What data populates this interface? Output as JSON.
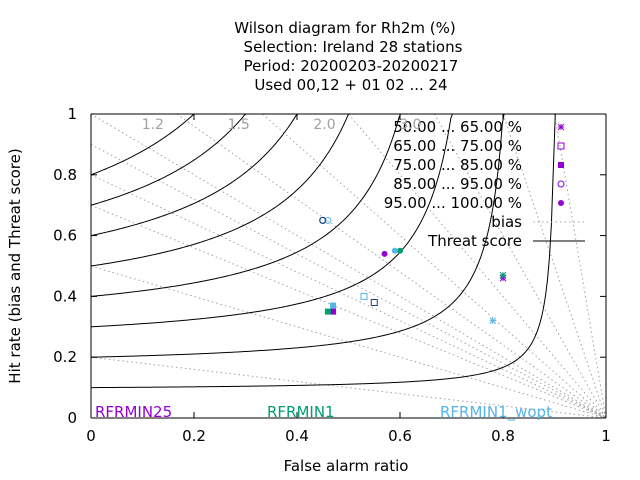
{
  "chart_data": {
    "type": "scatter",
    "title_lines": [
      "Wilson diagram  for Rh2m (%)",
      "Selection: Ireland      28 stations",
      "Period: 20200203-20200217",
      "Used  00,12  + 01 02 ... 24"
    ],
    "xlabel": "False alarm ratio",
    "ylabel": "Hit rate (bias and Threat score)",
    "xlim": [
      0,
      1
    ],
    "ylim": [
      0,
      1
    ],
    "xticks": [
      "0",
      "0.2",
      "0.4",
      "0.6",
      "0.8",
      "1"
    ],
    "yticks": [
      "0",
      "0.2",
      "0.4",
      "0.6",
      "0.8",
      "1"
    ],
    "bias_labels": [
      "1.2",
      "1.5",
      "2.0",
      "3.0"
    ],
    "bias_values": [
      1.2,
      1.5,
      2.0,
      3.0
    ],
    "threat_score_values": [
      0.1,
      0.2,
      0.3,
      0.4,
      0.5,
      0.6,
      0.7,
      0.8
    ],
    "legend": [
      {
        "label": "50.00 ... 65.00 %",
        "marker": "star",
        "color": "#9400d3"
      },
      {
        "label": "65.00 ... 75.00 %",
        "marker": "open-square",
        "color": "#9400d3"
      },
      {
        "label": "75.00 ... 85.00 %",
        "marker": "filled-square",
        "color": "#9400d3"
      },
      {
        "label": "85.00 ... 95.00 %",
        "marker": "open-circle",
        "color": "#9400d3"
      },
      {
        "label": "95.00 ... 100.00 %",
        "marker": "filled-circle",
        "color": "#9400d3"
      },
      {
        "label": "bias",
        "marker": "dotted-line",
        "color": "#a0a0a0"
      },
      {
        "label": "Threat score",
        "marker": "line",
        "color": "#000000"
      }
    ],
    "experiments": [
      {
        "name": "RFRMIN25",
        "color": "#9400d3"
      },
      {
        "name": "RFRMIN1",
        "color": "#009e73"
      },
      {
        "name": "RFRMIN1_wopt",
        "color": "#56b4e9"
      }
    ],
    "series": [
      {
        "name": "RFRMIN25",
        "color": "#9400d3",
        "points": [
          {
            "x": 0.8,
            "y": 0.46,
            "marker": "star"
          },
          {
            "x": 0.47,
            "y": 0.35,
            "marker": "filled-square"
          },
          {
            "x": 0.45,
            "y": 0.65,
            "marker": "open-circle"
          },
          {
            "x": 0.57,
            "y": 0.54,
            "marker": "filled-circle"
          }
        ]
      },
      {
        "name": "RFRMIN1",
        "color": "#009e73",
        "points": [
          {
            "x": 0.8,
            "y": 0.47,
            "marker": "star"
          },
          {
            "x": 0.46,
            "y": 0.35,
            "marker": "filled-square"
          },
          {
            "x": 0.45,
            "y": 0.65,
            "marker": "open-circle"
          },
          {
            "x": 0.6,
            "y": 0.55,
            "marker": "filled-circle"
          }
        ]
      },
      {
        "name": "RFRMIN1_wopt",
        "color": "#56b4e9",
        "points": [
          {
            "x": 0.78,
            "y": 0.32,
            "marker": "star"
          },
          {
            "x": 0.53,
            "y": 0.4,
            "marker": "open-square"
          },
          {
            "x": 0.47,
            "y": 0.37,
            "marker": "filled-square"
          },
          {
            "x": 0.46,
            "y": 0.65,
            "marker": "open-circle"
          },
          {
            "x": 0.59,
            "y": 0.55,
            "marker": "filled-circle"
          }
        ]
      },
      {
        "name": "navy",
        "color": "#1f3f7f",
        "points": [
          {
            "x": 0.55,
            "y": 0.38,
            "marker": "open-square"
          },
          {
            "x": 0.45,
            "y": 0.65,
            "marker": "open-circle"
          }
        ]
      }
    ]
  }
}
